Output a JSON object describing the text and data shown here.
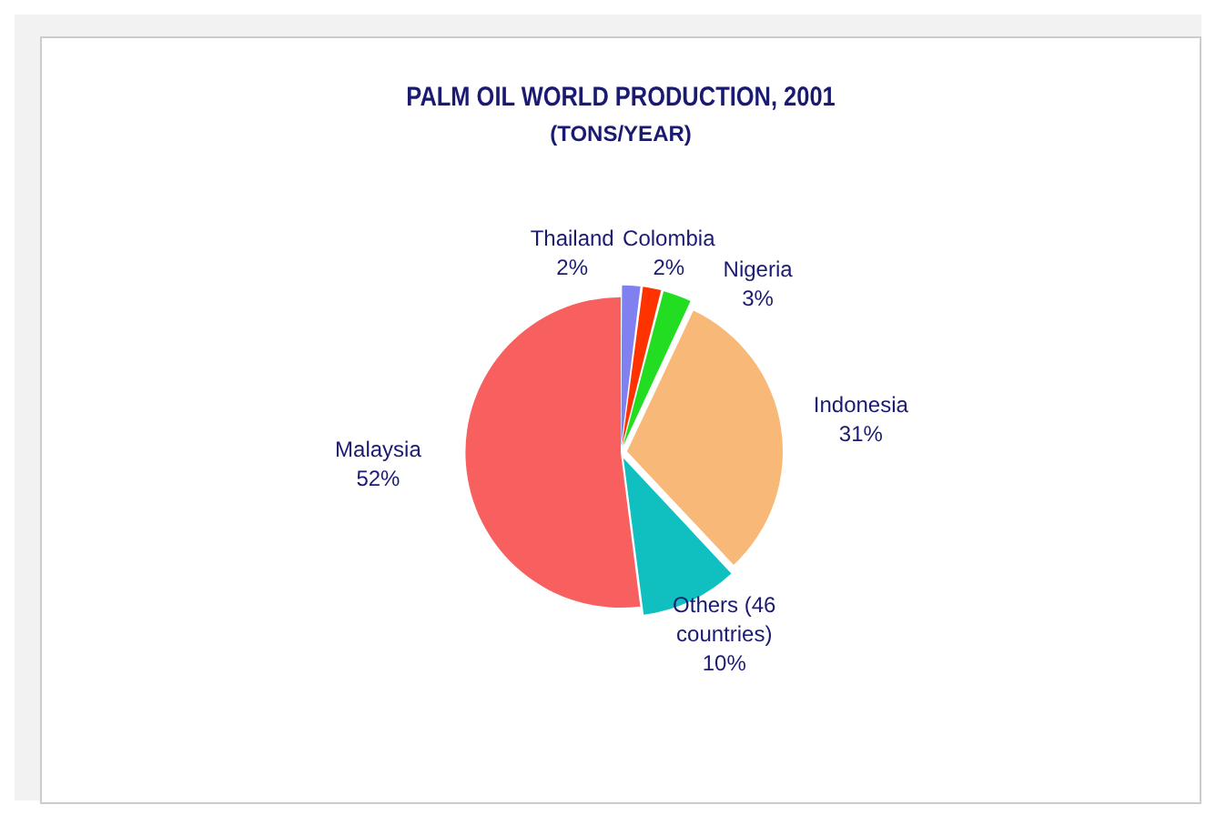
{
  "chart_data": {
    "type": "pie",
    "title": "PALM OIL WORLD PRODUCTION, 2001",
    "subtitle": "(TONS/YEAR)",
    "categories": [
      "Thailand",
      "Colombia",
      "Nigeria",
      "Indonesia",
      "Others (46 countries)",
      "Malaysia"
    ],
    "values": [
      2,
      2,
      3,
      31,
      10,
      52
    ],
    "value_labels": [
      "2%",
      "2%",
      "3%",
      "31%",
      "10%",
      "52%"
    ],
    "colors": [
      "#8080f0",
      "#ff3300",
      "#22dd22",
      "#f8b878",
      "#10c0c0",
      "#f86060"
    ],
    "legend": false
  }
}
